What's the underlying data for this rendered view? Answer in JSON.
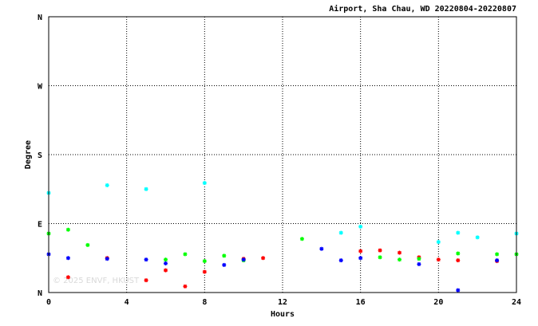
{
  "chart_data": {
    "type": "scatter",
    "title": "Airport, Sha Chau, WD 20220804-20220807",
    "xlabel": "Hours",
    "ylabel": "Degree",
    "xlim": [
      0,
      24
    ],
    "ylim": [
      0,
      360
    ],
    "x_ticks": [
      "0",
      "4",
      "8",
      "12",
      "16",
      "20",
      "24"
    ],
    "y_ticks": [
      "N",
      "E",
      "S",
      "W",
      "N"
    ],
    "grid": true,
    "watermark": "© 2025  ENVF, HKUST",
    "colors": {
      "red": "#ff0000",
      "green": "#00ff00",
      "blue": "#0000ff",
      "cyan": "#00ffff"
    },
    "series": [
      {
        "color": "red",
        "points": [
          [
            1,
            20
          ],
          [
            3,
            45
          ],
          [
            5,
            16
          ],
          [
            6,
            29
          ],
          [
            7,
            8
          ],
          [
            8,
            27
          ],
          [
            10,
            44
          ],
          [
            11,
            45
          ],
          [
            16,
            54
          ],
          [
            17,
            55
          ],
          [
            18,
            52
          ],
          [
            19,
            46
          ],
          [
            20,
            43
          ],
          [
            21,
            42
          ],
          [
            23,
            41
          ]
        ]
      },
      {
        "color": "green",
        "points": [
          [
            0,
            77
          ],
          [
            1,
            82
          ],
          [
            2,
            62
          ],
          [
            6,
            43
          ],
          [
            7,
            50
          ],
          [
            8,
            41
          ],
          [
            9,
            48
          ],
          [
            10,
            42
          ],
          [
            13,
            70
          ],
          [
            17,
            46
          ],
          [
            18,
            43
          ],
          [
            19,
            44
          ],
          [
            21,
            51
          ],
          [
            23,
            50
          ],
          [
            24,
            50
          ]
        ]
      },
      {
        "color": "blue",
        "points": [
          [
            0,
            50
          ],
          [
            1,
            45
          ],
          [
            3,
            44
          ],
          [
            5,
            43
          ],
          [
            6,
            38
          ],
          [
            9,
            36
          ],
          [
            10,
            43
          ],
          [
            14,
            57
          ],
          [
            15,
            42
          ],
          [
            16,
            45
          ],
          [
            19,
            37
          ],
          [
            21,
            3
          ],
          [
            23,
            42
          ]
        ]
      },
      {
        "color": "cyan",
        "points": [
          [
            0,
            130
          ],
          [
            3,
            140
          ],
          [
            5,
            135
          ],
          [
            8,
            143
          ],
          [
            15,
            78
          ],
          [
            16,
            86
          ],
          [
            20,
            66
          ],
          [
            21,
            78
          ],
          [
            22,
            72
          ],
          [
            24,
            77
          ]
        ]
      }
    ]
  }
}
